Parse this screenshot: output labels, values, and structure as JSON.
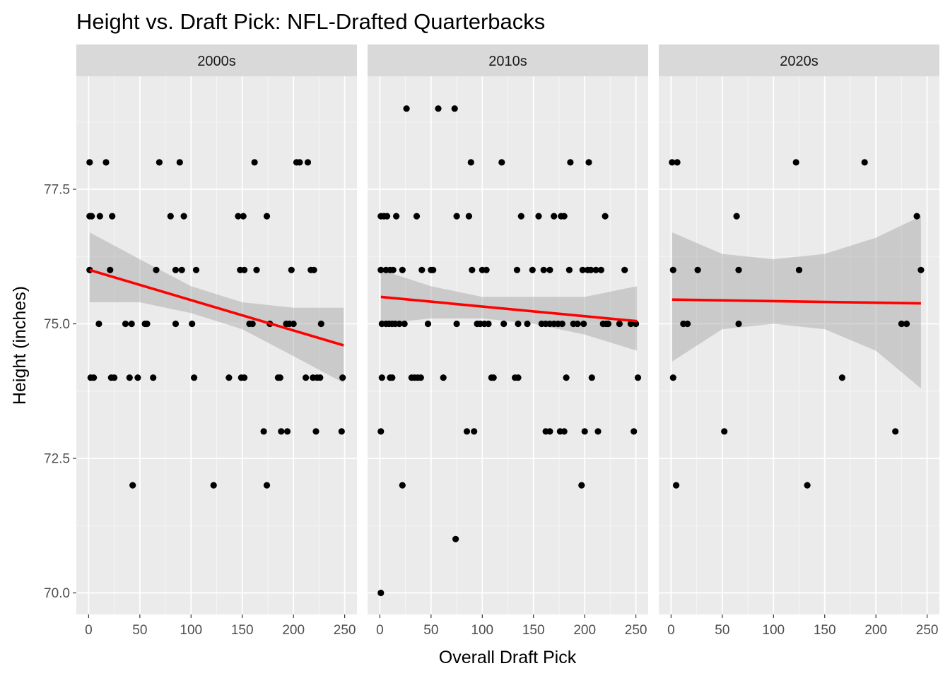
{
  "chart_data": {
    "type": "scatter",
    "title": "Height vs. Draft Pick: NFL-Drafted Quarterbacks",
    "xlabel": "Overall Draft Pick",
    "ylabel": "Height (inches)",
    "xlim": [
      -12,
      262
    ],
    "ylim": [
      69.6,
      79.6
    ],
    "x_ticks": [
      0,
      50,
      100,
      150,
      200,
      250
    ],
    "x_tick_labels": [
      "0",
      "50",
      "100",
      "150",
      "200",
      "250"
    ],
    "y_ticks": [
      70.0,
      72.5,
      75.0,
      77.5
    ],
    "y_tick_labels": [
      "70.0",
      "72.5",
      "75.0",
      "77.5"
    ],
    "grid": true,
    "colors": {
      "panel_bg": "#EBEBEB",
      "strip_bg": "#D9D9D9",
      "grid_major": "#FFFFFF",
      "grid_minor": "#F5F5F5",
      "points": "#000000",
      "fit_line": "#FF0000",
      "ribbon": "#999999"
    },
    "facets": [
      {
        "label": "2000s",
        "fit": {
          "x": [
            1,
            249
          ],
          "y": [
            76.0,
            74.6
          ]
        },
        "ribbon": {
          "x": [
            1,
            50,
            100,
            150,
            200,
            249
          ],
          "lower": [
            75.4,
            75.4,
            75.2,
            74.9,
            74.4,
            73.9
          ],
          "upper": [
            76.7,
            76.2,
            75.7,
            75.4,
            75.3,
            75.3
          ]
        },
        "points": [
          [
            1,
            78
          ],
          [
            1,
            77
          ],
          [
            3,
            77
          ],
          [
            11,
            77
          ],
          [
            23,
            77
          ],
          [
            1,
            76
          ],
          [
            21,
            76
          ],
          [
            10,
            75
          ],
          [
            36,
            75
          ],
          [
            42,
            75
          ],
          [
            55,
            75
          ],
          [
            57,
            75
          ],
          [
            85,
            75
          ],
          [
            101,
            75
          ],
          [
            2,
            74
          ],
          [
            5,
            74
          ],
          [
            22,
            74
          ],
          [
            25,
            74
          ],
          [
            40,
            74
          ],
          [
            48,
            74
          ],
          [
            63,
            74
          ],
          [
            43,
            72
          ],
          [
            17,
            78
          ],
          [
            69,
            78
          ],
          [
            89,
            78
          ],
          [
            80,
            77
          ],
          [
            93,
            77
          ],
          [
            66,
            76
          ],
          [
            85,
            76
          ],
          [
            91,
            76
          ],
          [
            105,
            76
          ],
          [
            103,
            74
          ],
          [
            122,
            72
          ],
          [
            146,
            77
          ],
          [
            151,
            77
          ],
          [
            162,
            78
          ],
          [
            174,
            77
          ],
          [
            148,
            76
          ],
          [
            152,
            76
          ],
          [
            164,
            76
          ],
          [
            157,
            75
          ],
          [
            160,
            75
          ],
          [
            137,
            74
          ],
          [
            149,
            74
          ],
          [
            152,
            74
          ],
          [
            171,
            73
          ],
          [
            174,
            72
          ],
          [
            203,
            78
          ],
          [
            206,
            78
          ],
          [
            214,
            78
          ],
          [
            198,
            76
          ],
          [
            217,
            76
          ],
          [
            220,
            76
          ],
          [
            177,
            75
          ],
          [
            193,
            75
          ],
          [
            196,
            75
          ],
          [
            200,
            75
          ],
          [
            227,
            75
          ],
          [
            185,
            74
          ],
          [
            187,
            74
          ],
          [
            212,
            74
          ],
          [
            219,
            74
          ],
          [
            223,
            74
          ],
          [
            226,
            74
          ],
          [
            248,
            74
          ],
          [
            188,
            73
          ],
          [
            194,
            73
          ],
          [
            222,
            73
          ],
          [
            247,
            73
          ]
        ]
      },
      {
        "label": "2010s",
        "fit": {
          "x": [
            1,
            251
          ],
          "y": [
            75.5,
            75.05
          ]
        },
        "ribbon": {
          "x": [
            1,
            50,
            100,
            150,
            200,
            251
          ],
          "lower": [
            75.0,
            75.1,
            75.1,
            75.0,
            74.8,
            74.5
          ],
          "upper": [
            76.0,
            75.7,
            75.5,
            75.5,
            75.5,
            75.7
          ]
        },
        "points": [
          [
            1,
            77
          ],
          [
            4,
            77
          ],
          [
            7,
            77
          ],
          [
            16,
            77
          ],
          [
            36,
            77
          ],
          [
            1,
            76
          ],
          [
            6,
            76
          ],
          [
            10,
            76
          ],
          [
            13,
            76
          ],
          [
            22,
            76
          ],
          [
            41,
            76
          ],
          [
            50,
            76
          ],
          [
            52,
            76
          ],
          [
            2,
            75
          ],
          [
            6,
            75
          ],
          [
            9,
            75
          ],
          [
            12,
            75
          ],
          [
            15,
            75
          ],
          [
            19,
            75
          ],
          [
            24,
            75
          ],
          [
            47,
            75
          ],
          [
            75,
            75
          ],
          [
            2,
            74
          ],
          [
            10,
            74
          ],
          [
            12,
            74
          ],
          [
            31,
            74
          ],
          [
            34,
            74
          ],
          [
            37,
            74
          ],
          [
            40,
            74
          ],
          [
            62,
            74
          ],
          [
            1,
            73
          ],
          [
            22,
            72
          ],
          [
            1,
            70
          ],
          [
            26,
            79
          ],
          [
            57,
            79
          ],
          [
            73,
            79
          ],
          [
            89,
            78
          ],
          [
            119,
            78
          ],
          [
            186,
            78
          ],
          [
            204,
            78
          ],
          [
            75,
            77
          ],
          [
            87,
            77
          ],
          [
            138,
            77
          ],
          [
            155,
            77
          ],
          [
            170,
            77
          ],
          [
            177,
            77
          ],
          [
            180,
            77
          ],
          [
            220,
            77
          ],
          [
            90,
            76
          ],
          [
            100,
            76
          ],
          [
            104,
            76
          ],
          [
            134,
            76
          ],
          [
            149,
            76
          ],
          [
            160,
            76
          ],
          [
            166,
            76
          ],
          [
            185,
            76
          ],
          [
            198,
            76
          ],
          [
            203,
            76
          ],
          [
            206,
            76
          ],
          [
            211,
            76
          ],
          [
            216,
            76
          ],
          [
            239,
            76
          ],
          [
            95,
            75
          ],
          [
            98,
            75
          ],
          [
            102,
            75
          ],
          [
            106,
            75
          ],
          [
            121,
            75
          ],
          [
            135,
            75
          ],
          [
            144,
            75
          ],
          [
            158,
            75
          ],
          [
            162,
            75
          ],
          [
            166,
            75
          ],
          [
            170,
            75
          ],
          [
            174,
            75
          ],
          [
            178,
            75
          ],
          [
            189,
            75
          ],
          [
            193,
            75
          ],
          [
            199,
            75
          ],
          [
            218,
            75
          ],
          [
            221,
            75
          ],
          [
            223,
            75
          ],
          [
            234,
            75
          ],
          [
            245,
            75
          ],
          [
            250,
            75
          ],
          [
            109,
            74
          ],
          [
            111,
            74
          ],
          [
            132,
            74
          ],
          [
            135,
            74
          ],
          [
            182,
            74
          ],
          [
            207,
            74
          ],
          [
            252,
            74
          ],
          [
            85,
            73
          ],
          [
            92,
            73
          ],
          [
            162,
            73
          ],
          [
            166,
            73
          ],
          [
            176,
            73
          ],
          [
            180,
            73
          ],
          [
            200,
            73
          ],
          [
            213,
            73
          ],
          [
            248,
            73
          ],
          [
            74,
            71
          ],
          [
            197,
            72
          ]
        ]
      },
      {
        "label": "2020s",
        "fit": {
          "x": [
            1,
            244
          ],
          "y": [
            75.45,
            75.38
          ]
        },
        "ribbon": {
          "x": [
            1,
            50,
            100,
            150,
            200,
            244
          ],
          "lower": [
            74.3,
            74.9,
            75.0,
            74.9,
            74.5,
            73.8
          ],
          "upper": [
            76.7,
            76.3,
            76.2,
            76.3,
            76.6,
            77.0
          ]
        },
        "points": [
          [
            1,
            78
          ],
          [
            6,
            78
          ],
          [
            122,
            78
          ],
          [
            189,
            78
          ],
          [
            64,
            77
          ],
          [
            240,
            77
          ],
          [
            2,
            76
          ],
          [
            26,
            76
          ],
          [
            66,
            76
          ],
          [
            125,
            76
          ],
          [
            244,
            76
          ],
          [
            12,
            75
          ],
          [
            16,
            75
          ],
          [
            66,
            75
          ],
          [
            225,
            75
          ],
          [
            230,
            75
          ],
          [
            2,
            74
          ],
          [
            167,
            74
          ],
          [
            52,
            73
          ],
          [
            219,
            73
          ],
          [
            5,
            72
          ],
          [
            133,
            72
          ]
        ]
      }
    ]
  }
}
